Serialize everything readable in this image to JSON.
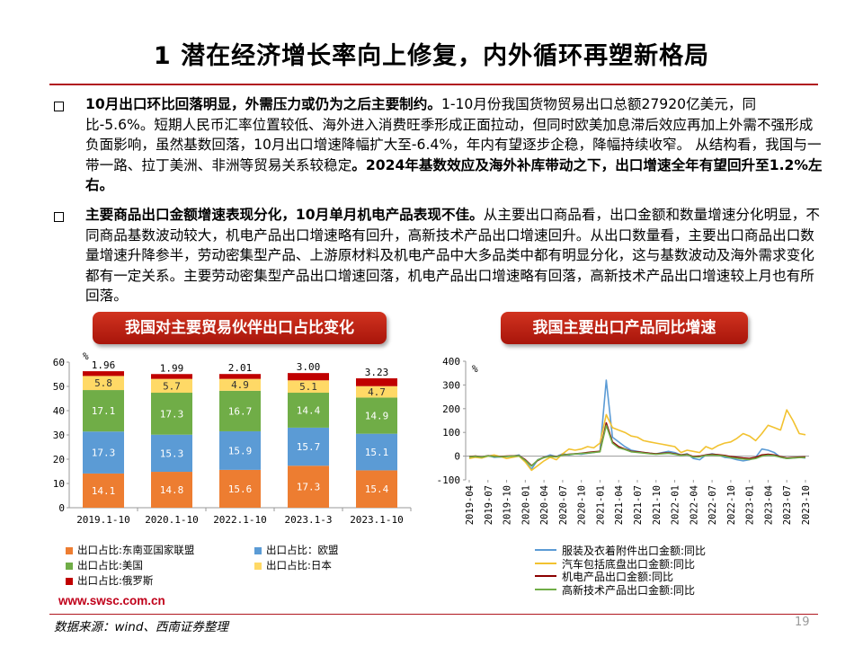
{
  "slide": {
    "title": "1 潜在经济增长率向上修复，内外循环再塑新格局",
    "bullets": [
      {
        "lead": "10月出口环比回落明显，外需压力或仍为之后主要制约。",
        "body": "1-10月份我国货物贸易出口总额27920亿美元，同比-5.6%。短期人民币汇率位置较低、海外进入消费旺季形成正面拉动，但同时欧美加息滞后效应再加上外需不强形成负面影响，虽然基数回落，10月出口增速降幅扩大至-6.4%，年内有望逐步企稳，降幅持续收窄。 从结构看，我国与一带一路、拉丁美洲、非洲等贸易关系较稳定",
        "tail": "。2024年基数效应及海外补库带动之下，出口增速全年有望回升至1.2%左右。"
      },
      {
        "lead": "主要商品出口金额增速表现分化，10月单月机电产品表现不佳。",
        "body": "从主要出口商品看，出口金额和数量增速分化明显，不同商品基数波动较大，机电产品出口增速略有回升，高新技术产品出口增速回升。从出口数量看，主要出口商品出口数量增速升降参半，劳动密集型产品、上游原材料及机电产品中大多品类中都有明显分化，这与基数波动及海外需求变化都有一定关系。主要劳动密集型产品出口增速回落，机电产品出口增速略有回落，高新技术产品出口增速较上月也有所回落。",
        "tail": ""
      }
    ],
    "footer_url": "www.swsc.com.cn",
    "footer_source": "数据来源：wind、西南证券整理",
    "page_number": "19"
  },
  "chart_data": [
    {
      "type": "bar",
      "stacked": true,
      "title": "我国对主要贸易伙伴出口占比变化",
      "unit": "%",
      "categories": [
        "2019.1-10",
        "2020.1-10",
        "2022.1-10",
        "2023.1-3",
        "2023.1-10"
      ],
      "ylim": [
        0,
        60
      ],
      "yticks": [
        0,
        10,
        20,
        30,
        40,
        50,
        60
      ],
      "series": [
        {
          "name": "出口占比:东南亚国家联盟",
          "color": "#ed7d31",
          "values": [
            14.1,
            14.8,
            15.6,
            17.3,
            15.4
          ]
        },
        {
          "name": "出口占比：欧盟",
          "color": "#5b9bd5",
          "values": [
            17.3,
            15.3,
            15.9,
            15.7,
            15.1
          ]
        },
        {
          "name": "出口占比:美国",
          "color": "#70ad47",
          "values": [
            17.1,
            17.3,
            16.7,
            14.4,
            14.9
          ]
        },
        {
          "name": "出口占比:日本",
          "color": "#ffd966",
          "values": [
            5.8,
            5.7,
            4.9,
            5.1,
            4.7
          ]
        },
        {
          "name": "出口占比:俄罗斯",
          "color": "#c00000",
          "values": [
            1.96,
            1.99,
            2.01,
            3.0,
            3.23
          ]
        }
      ],
      "labels": [
        [
          "14.1",
          "14.8",
          "15.6",
          "17.3",
          "15.4"
        ],
        [
          "17.3",
          "15.3",
          "15.9",
          "15.7",
          "15.1"
        ],
        [
          "17.1",
          "17.3",
          "16.7",
          "14.4",
          "14.9"
        ],
        [
          "5.8",
          "5.7",
          "4.9",
          "5.1",
          "4.7"
        ],
        [
          "1.96",
          "1.99",
          "2.01",
          "3.00",
          "3.23"
        ]
      ],
      "legend_position": "bottom"
    },
    {
      "type": "line",
      "title": "我国主要出口产品同比增速",
      "unit": "%",
      "ylim": [
        -100,
        400
      ],
      "yticks": [
        -100,
        0,
        100,
        200,
        300,
        400
      ],
      "x": [
        "2019-04",
        "2019-05",
        "2019-06",
        "2019-07",
        "2019-08",
        "2019-09",
        "2019-10",
        "2019-11",
        "2019-12",
        "2020-01",
        "2020-02",
        "2020-03",
        "2020-04",
        "2020-05",
        "2020-06",
        "2020-07",
        "2020-08",
        "2020-09",
        "2020-10",
        "2020-11",
        "2020-12",
        "2021-01",
        "2021-02",
        "2021-03",
        "2021-04",
        "2021-05",
        "2021-06",
        "2021-07",
        "2021-08",
        "2021-09",
        "2021-10",
        "2021-11",
        "2021-12",
        "2022-01",
        "2022-02",
        "2022-03",
        "2022-04",
        "2022-05",
        "2022-06",
        "2022-07",
        "2022-08",
        "2022-09",
        "2022-10",
        "2022-11",
        "2022-12",
        "2023-01",
        "2023-02",
        "2023-03",
        "2023-04",
        "2023-05",
        "2023-06",
        "2023-07",
        "2023-08",
        "2023-09",
        "2023-10"
      ],
      "xtick_labels": [
        "2019-04",
        "2019-07",
        "2019-10",
        "2020-01",
        "2020-04",
        "2020-07",
        "2020-10",
        "2021-01",
        "2021-04",
        "2021-07",
        "2021-10",
        "2022-01",
        "2022-04",
        "2022-07",
        "2022-10",
        "2023-01",
        "2023-04",
        "2023-07",
        "2023-10"
      ],
      "series": [
        {
          "name": "服装及衣着附件出口金额:同比",
          "color": "#5b9bd5",
          "values": [
            -5,
            0,
            -3,
            2,
            -5,
            -3,
            -2,
            0,
            5,
            -20,
            -55,
            -15,
            -5,
            5,
            -2,
            10,
            5,
            10,
            8,
            12,
            15,
            20,
            320,
            80,
            60,
            40,
            25,
            20,
            15,
            12,
            10,
            15,
            20,
            15,
            5,
            10,
            -10,
            -15,
            5,
            10,
            5,
            -5,
            -8,
            -15,
            -20,
            -15,
            -5,
            30,
            25,
            15,
            -5,
            -10,
            -8,
            -5,
            -8
          ]
        },
        {
          "name": "汽车包括底盘出口金额:同比",
          "color": "#f2c230",
          "values": [
            -10,
            -5,
            -8,
            0,
            5,
            -2,
            -10,
            -5,
            0,
            -25,
            -60,
            -40,
            -20,
            -5,
            -15,
            10,
            30,
            25,
            30,
            40,
            35,
            55,
            175,
            120,
            110,
            100,
            85,
            80,
            65,
            60,
            55,
            50,
            45,
            40,
            15,
            25,
            20,
            15,
            40,
            30,
            45,
            55,
            60,
            75,
            95,
            85,
            65,
            95,
            130,
            120,
            110,
            195,
            150,
            95,
            90
          ]
        },
        {
          "name": "机电产品出口金额:同比",
          "color": "#8b0000",
          "values": [
            -2,
            0,
            -3,
            2,
            -1,
            -2,
            0,
            1,
            2,
            -15,
            -40,
            -18,
            -5,
            0,
            -2,
            5,
            8,
            10,
            12,
            15,
            18,
            20,
            140,
            60,
            40,
            30,
            20,
            18,
            15,
            12,
            10,
            12,
            14,
            10,
            5,
            8,
            -2,
            0,
            5,
            8,
            6,
            3,
            -2,
            -5,
            -8,
            -10,
            -5,
            5,
            8,
            5,
            -2,
            -8,
            -6,
            -4,
            -3
          ]
        },
        {
          "name": "高新技术产品出口金额:同比",
          "color": "#70ad47",
          "values": [
            -3,
            -1,
            -4,
            1,
            -2,
            -3,
            -1,
            0,
            1,
            -18,
            -42,
            -16,
            -6,
            -1,
            -3,
            4,
            7,
            9,
            11,
            13,
            16,
            18,
            130,
            55,
            35,
            28,
            18,
            16,
            13,
            10,
            8,
            10,
            12,
            8,
            3,
            6,
            -4,
            -3,
            3,
            5,
            3,
            0,
            -6,
            -9,
            -12,
            -14,
            -10,
            0,
            4,
            2,
            -5,
            -10,
            -8,
            -6,
            -6
          ]
        }
      ],
      "legend_position": "bottom"
    }
  ]
}
